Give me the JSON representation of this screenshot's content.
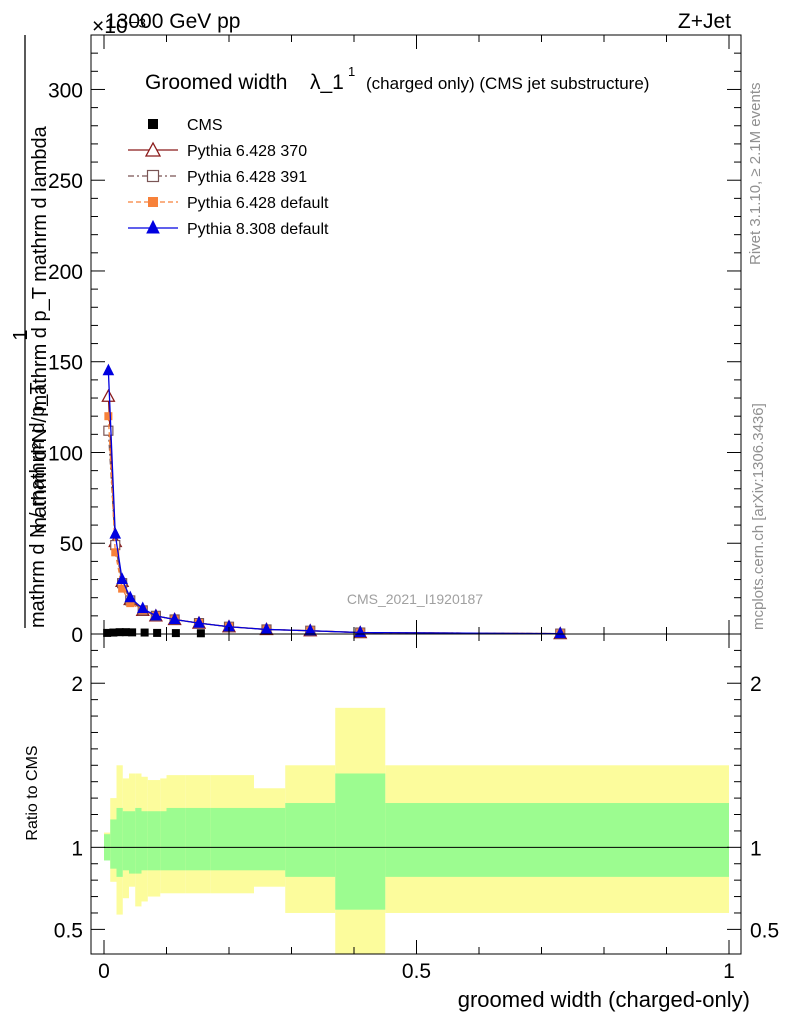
{
  "header": {
    "energy_label": "13000 GeV pp",
    "process_label": "Z+Jet",
    "exponent_label": "×10⁻³"
  },
  "side_labels": {
    "rivet": "Rivet 3.1.10, ≥ 2.1M events",
    "mcplots": "mcplots.cern.ch [arXiv:1306.3436]"
  },
  "chart_data": [
    {
      "type": "line",
      "title": "Groomed width",
      "title_symbol": "λ_1",
      "title_superscript": "1",
      "subtitle": "(charged only) (CMS jet substructure)",
      "ylabel_numerator": "1",
      "ylabel_denominator": "mathrm d N / mathrm d p_T",
      "ylabel_main": "mathrm d²N / mathrm d p_T mathrm d lambda",
      "xlabel": "groomed width (charged-only)",
      "watermark": "CMS_2021_I1920187",
      "xlim": [
        0,
        1
      ],
      "ylim": [
        0,
        330
      ],
      "y_multiplier": "1e-3",
      "x_ticks": [
        0,
        0.5,
        1
      ],
      "x_tick_labels": [
        "0",
        "0.5",
        "1"
      ],
      "y_ticks": [
        0,
        50,
        100,
        150,
        200,
        250,
        300
      ],
      "y_tick_labels": [
        "0",
        "50",
        "100",
        "150",
        "200",
        "250",
        "300"
      ],
      "legend_position": "top-left",
      "bins": [
        0,
        0.01,
        0.02,
        0.03,
        0.04,
        0.05,
        0.06,
        0.07,
        0.09,
        0.1,
        0.13,
        0.17,
        0.24,
        0.29,
        0.37,
        0.45,
        1.0
      ],
      "cms_markers": [
        {
          "x": 0.005,
          "y": 0.6
        },
        {
          "x": 0.015,
          "y": 0.8
        },
        {
          "x": 0.025,
          "y": 1.0
        },
        {
          "x": 0.035,
          "y": 1.0
        },
        {
          "x": 0.045,
          "y": 0.9
        },
        {
          "x": 0.065,
          "y": 0.8
        },
        {
          "x": 0.085,
          "y": 0.6
        },
        {
          "x": 0.115,
          "y": 0.5
        },
        {
          "x": 0.155,
          "y": 0.4
        }
      ],
      "series": [
        {
          "name": "CMS",
          "style": "cms",
          "color": "#000000",
          "x": [],
          "y": []
        },
        {
          "name": "Pythia 6.428 370",
          "style": "open-triangle",
          "color": "#8b1a1a",
          "x": [
            0.007,
            0.018,
            0.029,
            0.042,
            0.062,
            0.083,
            0.113,
            0.152,
            0.2,
            0.26,
            0.33,
            0.41,
            0.73
          ],
          "y": [
            131,
            51,
            29,
            19,
            13,
            10,
            8,
            6,
            4,
            2.5,
            1.8,
            0.8,
            0.2
          ]
        },
        {
          "name": "Pythia 6.428 391",
          "style": "open-square",
          "color": "#7a5555",
          "x": [
            0.007,
            0.018,
            0.029,
            0.042,
            0.062,
            0.083,
            0.113,
            0.152,
            0.2,
            0.26,
            0.33,
            0.41,
            0.73
          ],
          "y": [
            112,
            49,
            28,
            18.5,
            13,
            10,
            8,
            6,
            4,
            2.5,
            1.8,
            0.8,
            0.2
          ]
        },
        {
          "name": "Pythia 6.428 default",
          "style": "filled-square",
          "color": "#f7813a",
          "x": [
            0.007,
            0.018,
            0.029,
            0.042,
            0.062,
            0.083,
            0.113,
            0.152,
            0.2,
            0.26,
            0.33,
            0.41,
            0.73
          ],
          "y": [
            120,
            45,
            25,
            17,
            13,
            10,
            8,
            6,
            4,
            2.5,
            1.8,
            0.8,
            0.2
          ]
        },
        {
          "name": "Pythia 8.308 default",
          "style": "filled-triangle",
          "color": "#0000e0",
          "x": [
            0.007,
            0.018,
            0.029,
            0.042,
            0.062,
            0.083,
            0.113,
            0.152,
            0.2,
            0.26,
            0.33,
            0.41,
            0.73
          ],
          "y": [
            145,
            55,
            30,
            20,
            14,
            10,
            8,
            6,
            4,
            2.5,
            1.8,
            0.8,
            0.2
          ]
        }
      ]
    },
    {
      "type": "area",
      "ylabel": "Ratio to CMS",
      "xlim": [
        0,
        1
      ],
      "ylim": [
        0.35,
        2.3
      ],
      "y_ticks": [
        0.5,
        1,
        2
      ],
      "y_tick_labels": [
        "0.5",
        "1",
        "2"
      ],
      "reference_line": 1,
      "bins": [
        0,
        0.01,
        0.02,
        0.03,
        0.04,
        0.05,
        0.06,
        0.07,
        0.09,
        0.1,
        0.13,
        0.17,
        0.24,
        0.29,
        0.37,
        0.45,
        1.0
      ],
      "band_inner_color": "#9cfc90",
      "band_outer_color": "#fcfc9c",
      "inner_low": [
        0.92,
        0.87,
        0.82,
        0.86,
        0.84,
        0.84,
        0.86,
        0.86,
        0.86,
        0.86,
        0.86,
        0.86,
        0.86,
        0.82,
        0.62,
        0.82
      ],
      "inner_high": [
        1.08,
        1.17,
        1.24,
        1.22,
        1.22,
        1.24,
        1.22,
        1.22,
        1.22,
        1.24,
        1.24,
        1.24,
        1.24,
        1.27,
        1.45,
        1.27
      ],
      "outer_low": [
        0.94,
        0.79,
        0.59,
        0.69,
        0.76,
        0.64,
        0.67,
        0.7,
        0.72,
        0.72,
        0.72,
        0.72,
        0.76,
        0.6,
        0.2,
        0.6
      ],
      "outer_high": [
        1.09,
        1.3,
        1.5,
        1.42,
        1.45,
        1.45,
        1.43,
        1.41,
        1.42,
        1.44,
        1.44,
        1.44,
        1.36,
        1.5,
        1.85,
        1.5
      ]
    }
  ]
}
